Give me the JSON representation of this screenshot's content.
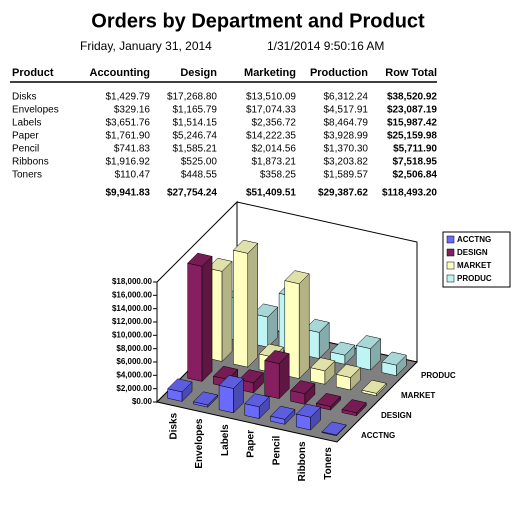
{
  "header": {
    "title": "Orders by Department and Product",
    "date": "Friday, January 31, 2014",
    "timestamp": "1/31/2014 9:50:16 AM"
  },
  "table": {
    "columns": [
      "Product",
      "Accounting",
      "Design",
      "Marketing",
      "Production",
      "Row Total"
    ],
    "rows": [
      [
        "Disks",
        "$1,429.79",
        "$17,268.80",
        "$13,510.09",
        "$6,312.24",
        "$38,520.92"
      ],
      [
        "Envelopes",
        "$329.16",
        "$1,165.79",
        "$17,074.33",
        "$4,517.91",
        "$23,087.19"
      ],
      [
        "Labels",
        "$3,651.76",
        "$1,514.15",
        "$2,356.72",
        "$8,464.79",
        "$15,987.42"
      ],
      [
        "Paper",
        "$1,761.90",
        "$5,246.74",
        "$14,222.35",
        "$3,928.99",
        "$25,159.98"
      ],
      [
        "Pencil",
        "$741.83",
        "$1,585.21",
        "$2,014.56",
        "$1,370.30",
        "$5,711.90"
      ],
      [
        "Ribbons",
        "$1,916.92",
        "$525.00",
        "$1,873.21",
        "$3,203.82",
        "$7,518.95"
      ],
      [
        "Toners",
        "$110.47",
        "$448.55",
        "$358.25",
        "$1,589.57",
        "$2,506.84"
      ]
    ],
    "totals": [
      "$9,941.83",
      "$27,754.24",
      "$51,409.51",
      "$29,387.62",
      "$118,493.20"
    ]
  },
  "chart_data": {
    "type": "bar3d",
    "categories": [
      "Disks",
      "Envelopes",
      "Labels",
      "Paper",
      "Pencil",
      "Ribbons",
      "Toners"
    ],
    "series": [
      {
        "name": "ACCTNG",
        "color": "#6a6aff",
        "values": [
          1429.79,
          329.16,
          3651.76,
          1761.9,
          741.83,
          1916.92,
          110.47
        ]
      },
      {
        "name": "DESIGN",
        "color": "#861f60",
        "values": [
          17268.8,
          1165.79,
          1514.15,
          5246.74,
          1585.21,
          525.0,
          448.55
        ]
      },
      {
        "name": "MARKET",
        "color": "#ffffc0",
        "values": [
          13510.09,
          17074.33,
          2356.72,
          14222.35,
          2014.56,
          1873.21,
          358.25
        ]
      },
      {
        "name": "PRODUC",
        "color": "#bff4f4",
        "values": [
          6312.24,
          4517.91,
          8464.79,
          3928.99,
          1370.3,
          3203.82,
          1589.57
        ]
      }
    ],
    "ylim": [
      0,
      18000
    ],
    "yticks": [
      {
        "value": 0,
        "label": "$0.00"
      },
      {
        "value": 2000,
        "label": "$2,000.00"
      },
      {
        "value": 4000,
        "label": "$4,000.00"
      },
      {
        "value": 6000,
        "label": "$6,000.00"
      },
      {
        "value": 8000,
        "label": "$8,000.00"
      },
      {
        "value": 10000,
        "label": "$10,000.00"
      },
      {
        "value": 12000,
        "label": "$12,000.00"
      },
      {
        "value": 14000,
        "label": "$14,000.00"
      },
      {
        "value": 16000,
        "label": "$16,000.00"
      },
      {
        "value": 18000,
        "label": "$18,000.00"
      }
    ],
    "legend": "right"
  }
}
